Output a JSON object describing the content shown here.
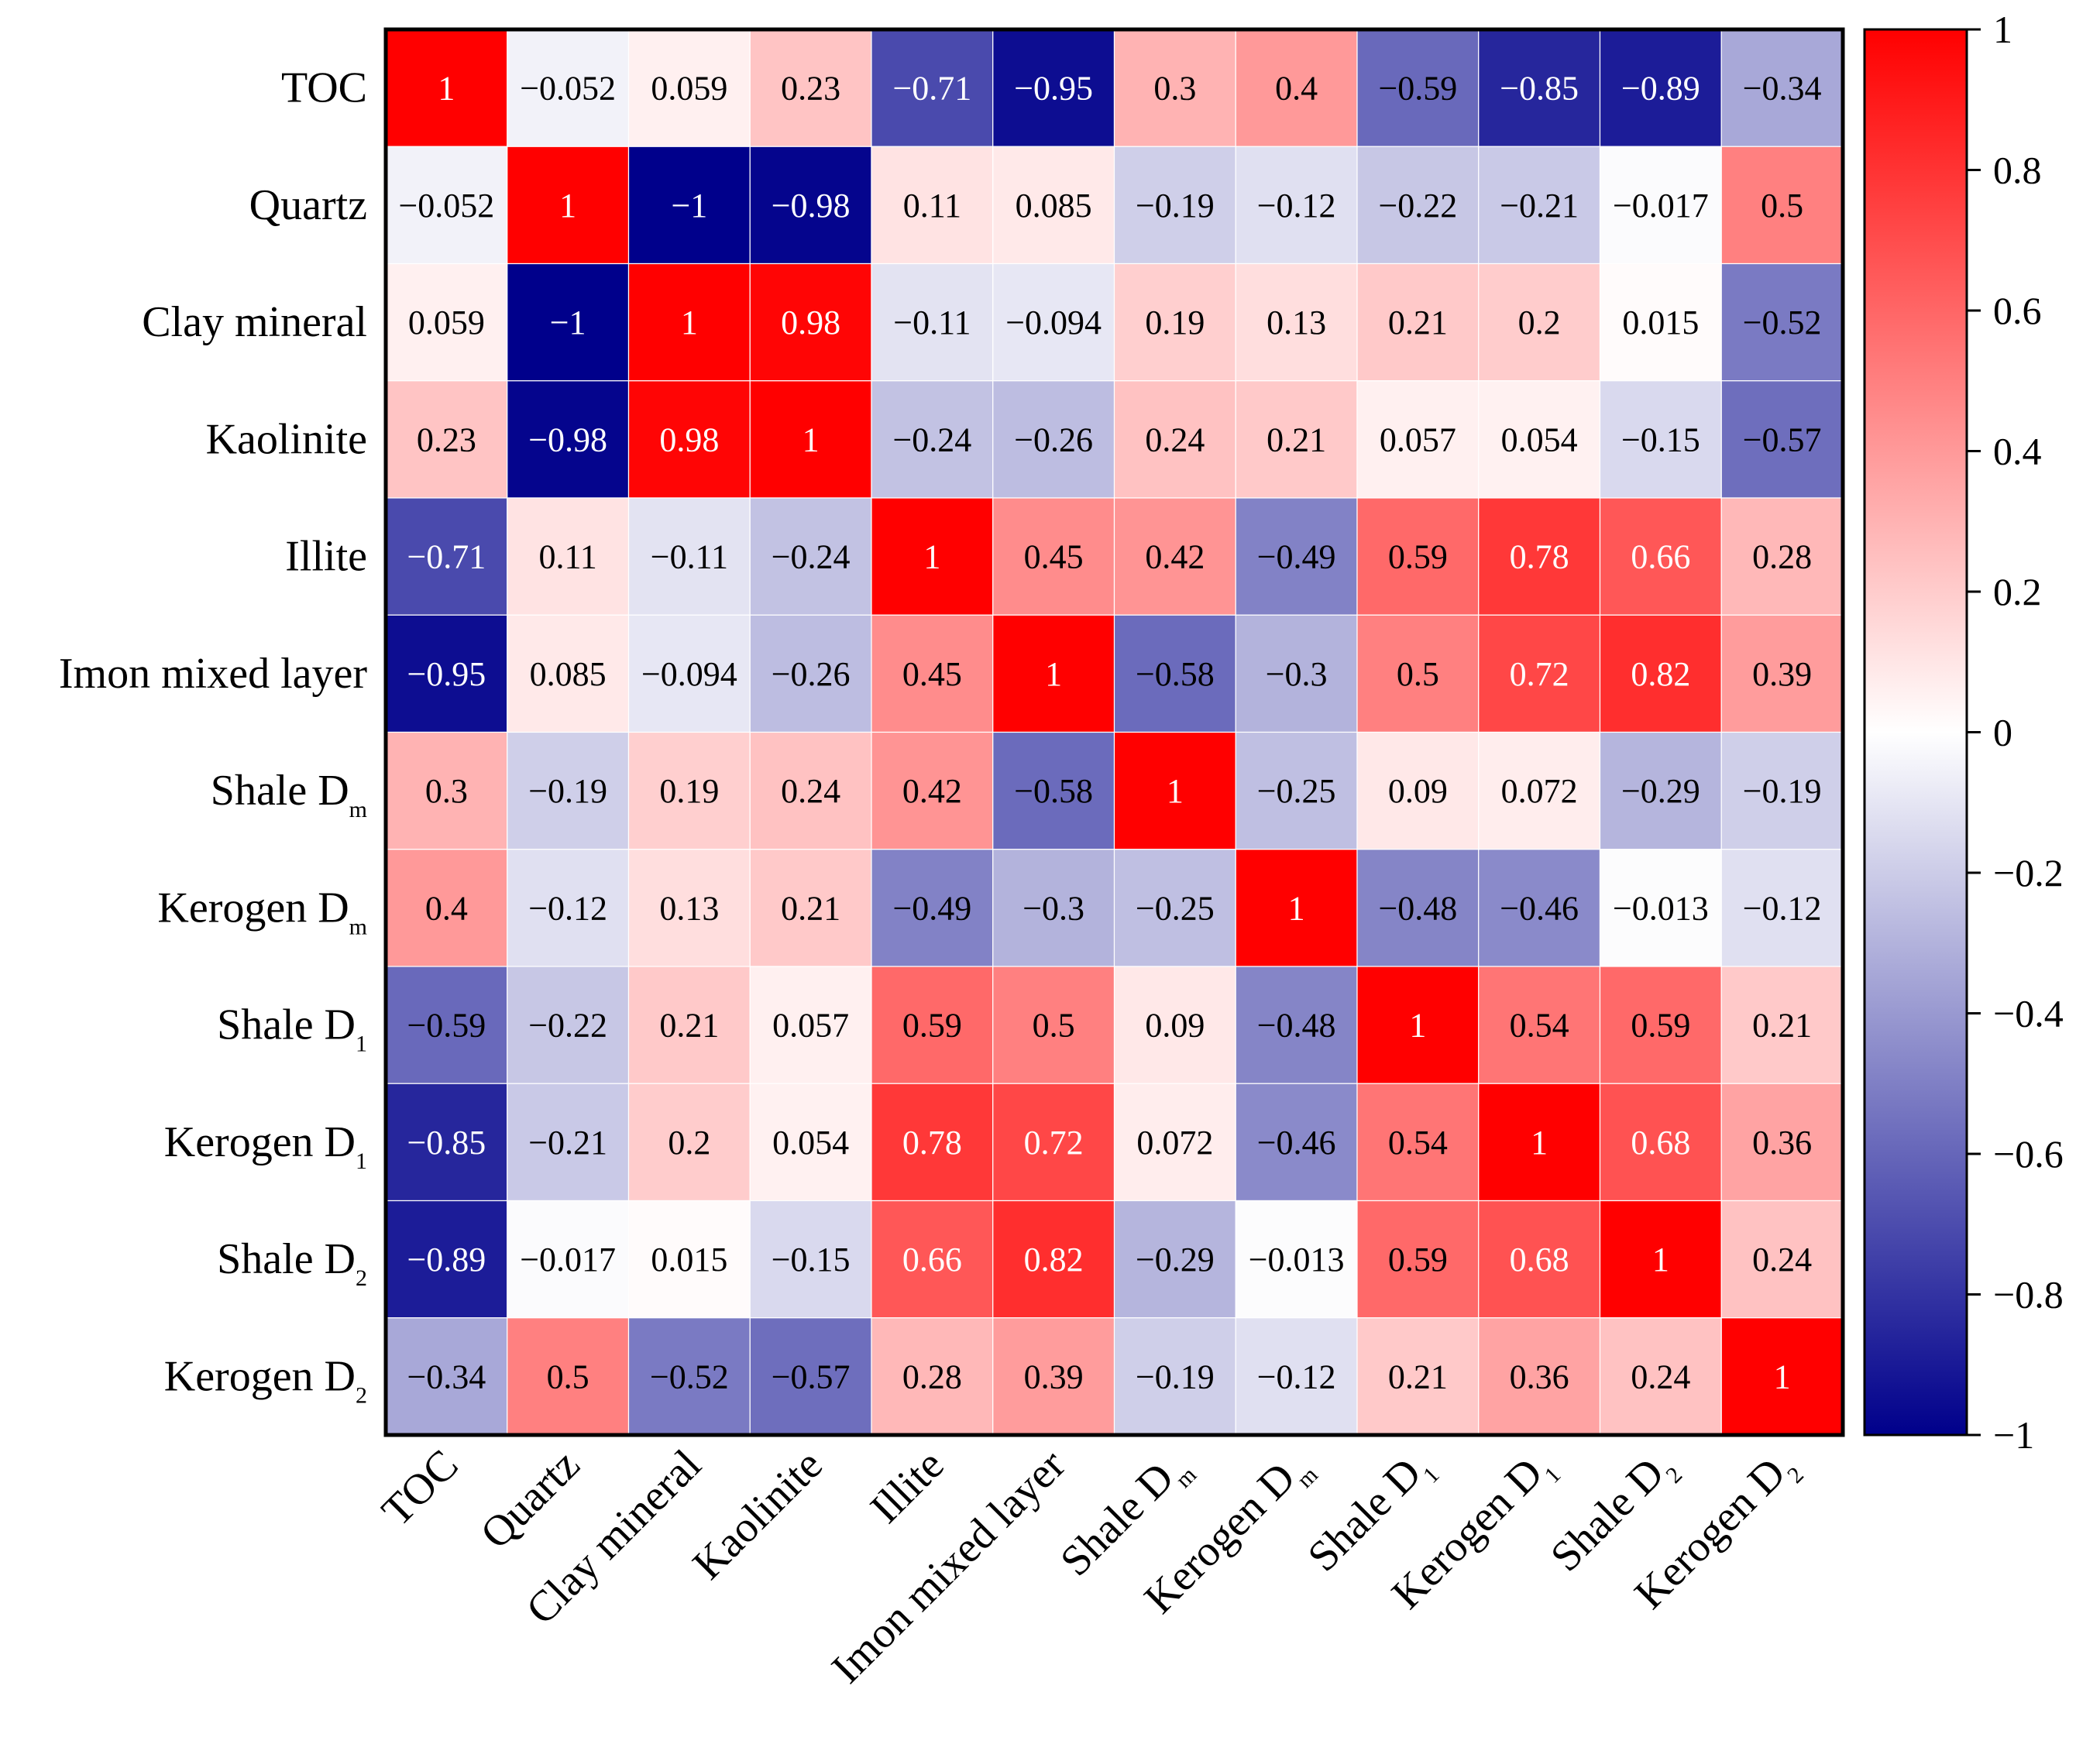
{
  "chart_data": {
    "type": "heatmap",
    "title": "",
    "xlabel": "",
    "ylabel": "",
    "labels": [
      {
        "text": "TOC",
        "sub": ""
      },
      {
        "text": "Quartz",
        "sub": ""
      },
      {
        "text": "Clay mineral",
        "sub": ""
      },
      {
        "text": "Kaolinite",
        "sub": ""
      },
      {
        "text": "Illite",
        "sub": ""
      },
      {
        "text": "Imon mixed layer",
        "sub": ""
      },
      {
        "text": "Shale D",
        "sub": "m"
      },
      {
        "text": "Kerogen D",
        "sub": "m"
      },
      {
        "text": "Shale  D",
        "sub": "1"
      },
      {
        "text": "Kerogen D",
        "sub": "1"
      },
      {
        "text": "Shale D",
        "sub": "2"
      },
      {
        "text": "Kerogen D",
        "sub": "2"
      }
    ],
    "matrix": [
      [
        1,
        -0.052,
        0.059,
        0.23,
        -0.71,
        -0.95,
        0.3,
        0.4,
        -0.59,
        -0.85,
        -0.89,
        -0.34
      ],
      [
        -0.052,
        1,
        -1,
        -0.98,
        0.11,
        0.085,
        -0.19,
        -0.12,
        -0.22,
        -0.21,
        -0.017,
        0.5
      ],
      [
        0.059,
        -1,
        1,
        0.98,
        -0.11,
        -0.094,
        0.19,
        0.13,
        0.21,
        0.2,
        0.015,
        -0.52
      ],
      [
        0.23,
        -0.98,
        0.98,
        1,
        -0.24,
        -0.26,
        0.24,
        0.21,
        0.057,
        0.054,
        -0.15,
        -0.57
      ],
      [
        -0.71,
        0.11,
        -0.11,
        -0.24,
        1,
        0.45,
        0.42,
        -0.49,
        0.59,
        0.78,
        0.66,
        0.28
      ],
      [
        -0.95,
        0.085,
        -0.094,
        -0.26,
        0.45,
        1,
        -0.58,
        -0.3,
        0.5,
        0.72,
        0.82,
        0.39
      ],
      [
        0.3,
        -0.19,
        0.19,
        0.24,
        0.42,
        -0.58,
        1,
        -0.25,
        0.09,
        0.072,
        -0.29,
        -0.19
      ],
      [
        0.4,
        -0.12,
        0.13,
        0.21,
        -0.49,
        -0.3,
        -0.25,
        1,
        -0.48,
        -0.46,
        -0.013,
        -0.12
      ],
      [
        -0.59,
        -0.22,
        0.21,
        0.057,
        0.59,
        0.5,
        0.09,
        -0.48,
        1,
        0.54,
        0.59,
        0.21
      ],
      [
        -0.85,
        -0.21,
        0.2,
        0.054,
        0.78,
        0.72,
        0.072,
        -0.46,
        0.54,
        1,
        0.68,
        0.36
      ],
      [
        -0.89,
        -0.017,
        0.015,
        -0.15,
        0.66,
        0.82,
        -0.29,
        -0.013,
        0.59,
        0.68,
        1,
        0.24
      ],
      [
        -0.34,
        0.5,
        -0.52,
        -0.57,
        0.28,
        0.39,
        -0.19,
        -0.12,
        0.21,
        0.36,
        0.24,
        1
      ]
    ],
    "colorbar": {
      "range": [
        -1,
        1
      ],
      "ticks": [
        1,
        0.8,
        0.6,
        0.4,
        0.2,
        0,
        -0.2,
        -0.4,
        -0.6,
        -0.8,
        -1
      ],
      "tick_labels": [
        "1",
        "0.8",
        "0.6",
        "0.4",
        "0.2",
        "0",
        "−0.2",
        "−0.4",
        "−0.6",
        "−0.8",
        "−1"
      ],
      "colors": {
        "low": "#00008b",
        "mid": "#ffffff",
        "high": "#ff0000"
      }
    }
  }
}
